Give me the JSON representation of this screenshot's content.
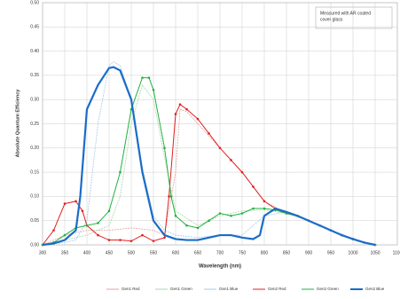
{
  "chart_data": {
    "type": "line",
    "x_label": "Wavelength (nm)",
    "y_label": "Absolute Quantum Efficiency",
    "annotation": [
      "Measured with AR coated",
      "cover glass"
    ],
    "xlim": [
      300,
      1100
    ],
    "xticks": [
      300,
      350,
      400,
      450,
      500,
      550,
      600,
      650,
      700,
      750,
      800,
      850,
      900,
      950,
      1000,
      1050,
      1100
    ],
    "ylim": [
      0,
      0.5
    ],
    "yticks": [
      {
        "value": 0,
        "label": "0.00"
      },
      {
        "value": 0.05,
        "label": "0.05"
      },
      {
        "value": 0.1,
        "label": "0.10"
      },
      {
        "value": 0.15,
        "label": "0.15"
      },
      {
        "value": 0.2,
        "label": "0.20"
      },
      {
        "value": 0.25,
        "label": "0.25"
      },
      {
        "value": 0.3,
        "label": "0.30"
      },
      {
        "value": 0.35,
        "label": "0.35"
      },
      {
        "value": 0.4,
        "label": "0.40"
      },
      {
        "value": 0.45,
        "label": "0.45"
      },
      {
        "value": 0.5,
        "label": "0.50"
      }
    ],
    "grid": true,
    "series": [
      {
        "name": "Gen1 Red",
        "color": "#e6a3a3",
        "x": [
          300,
          350,
          400,
          450,
          500,
          550,
          575,
          600,
          610,
          625,
          650,
          700,
          750,
          800,
          850,
          900,
          950,
          1000,
          1050
        ],
        "values": [
          0,
          0.02,
          0.03,
          0.03,
          0.035,
          0.03,
          0.02,
          0.15,
          0.28,
          0.275,
          0.25,
          0.2,
          0.15,
          0.09,
          0.065,
          0.05,
          0.03,
          0.012,
          0
        ]
      },
      {
        "name": "Gen1 Green",
        "color": "#a8d8a8",
        "x": [
          300,
          350,
          400,
          450,
          475,
          500,
          525,
          550,
          575,
          600,
          650,
          700,
          750,
          800,
          850,
          900,
          950,
          1000,
          1050
        ],
        "values": [
          0,
          0.01,
          0.02,
          0.04,
          0.1,
          0.25,
          0.33,
          0.3,
          0.18,
          0.07,
          0.04,
          0.06,
          0.07,
          0.072,
          0.065,
          0.05,
          0.03,
          0.012,
          0
        ]
      },
      {
        "name": "Gen1 Blue",
        "color": "#a8c8e8",
        "x": [
          300,
          350,
          375,
          400,
          425,
          450,
          460,
          475,
          500,
          525,
          550,
          575,
          600,
          650,
          700,
          750,
          800,
          850,
          900,
          950,
          1000,
          1050
        ],
        "values": [
          0,
          0.005,
          0.01,
          0.05,
          0.25,
          0.37,
          0.378,
          0.37,
          0.3,
          0.16,
          0.06,
          0.03,
          0.02,
          0.015,
          0.02,
          0.02,
          0.06,
          0.068,
          0.05,
          0.03,
          0.012,
          0
        ]
      },
      {
        "name": "Gen2 Red",
        "color": "#e02020",
        "x": [
          300,
          325,
          350,
          375,
          390,
          400,
          425,
          450,
          475,
          500,
          525,
          550,
          575,
          585,
          600,
          610,
          625,
          650,
          675,
          700,
          725,
          750,
          775,
          800,
          825,
          850,
          875,
          900,
          925,
          950,
          975,
          1000,
          1025,
          1050
        ],
        "values": [
          0,
          0.03,
          0.085,
          0.09,
          0.07,
          0.04,
          0.02,
          0.01,
          0.01,
          0.008,
          0.02,
          0.008,
          0.015,
          0.1,
          0.27,
          0.29,
          0.28,
          0.26,
          0.23,
          0.2,
          0.175,
          0.15,
          0.12,
          0.09,
          0.075,
          0.065,
          0.06,
          0.05,
          0.04,
          0.03,
          0.02,
          0.012,
          0.005,
          0
        ]
      },
      {
        "name": "Gen2 Green",
        "color": "#20b040",
        "x": [
          300,
          325,
          350,
          375,
          400,
          425,
          450,
          475,
          500,
          525,
          540,
          550,
          575,
          590,
          600,
          625,
          650,
          675,
          700,
          725,
          750,
          775,
          800,
          825,
          850,
          875,
          900,
          925,
          950,
          975,
          1000,
          1025,
          1050
        ],
        "values": [
          0,
          0.005,
          0.02,
          0.035,
          0.04,
          0.045,
          0.07,
          0.15,
          0.28,
          0.345,
          0.345,
          0.32,
          0.2,
          0.1,
          0.06,
          0.04,
          0.035,
          0.05,
          0.065,
          0.06,
          0.065,
          0.075,
          0.075,
          0.072,
          0.065,
          0.06,
          0.05,
          0.04,
          0.03,
          0.02,
          0.012,
          0.005,
          0
        ]
      },
      {
        "name": "Gen2 Blue",
        "color": "#1a6cc8",
        "x": [
          300,
          325,
          350,
          375,
          385,
          400,
          425,
          450,
          460,
          475,
          500,
          525,
          550,
          575,
          600,
          625,
          650,
          675,
          700,
          725,
          750,
          775,
          790,
          800,
          825,
          850,
          875,
          900,
          925,
          950,
          975,
          1000,
          1025,
          1050
        ],
        "values": [
          0,
          0.003,
          0.01,
          0.03,
          0.1,
          0.28,
          0.33,
          0.365,
          0.367,
          0.36,
          0.3,
          0.15,
          0.05,
          0.02,
          0.012,
          0.01,
          0.01,
          0.015,
          0.02,
          0.02,
          0.015,
          0.012,
          0.02,
          0.06,
          0.075,
          0.068,
          0.06,
          0.05,
          0.04,
          0.03,
          0.02,
          0.012,
          0.005,
          0
        ]
      }
    ]
  }
}
